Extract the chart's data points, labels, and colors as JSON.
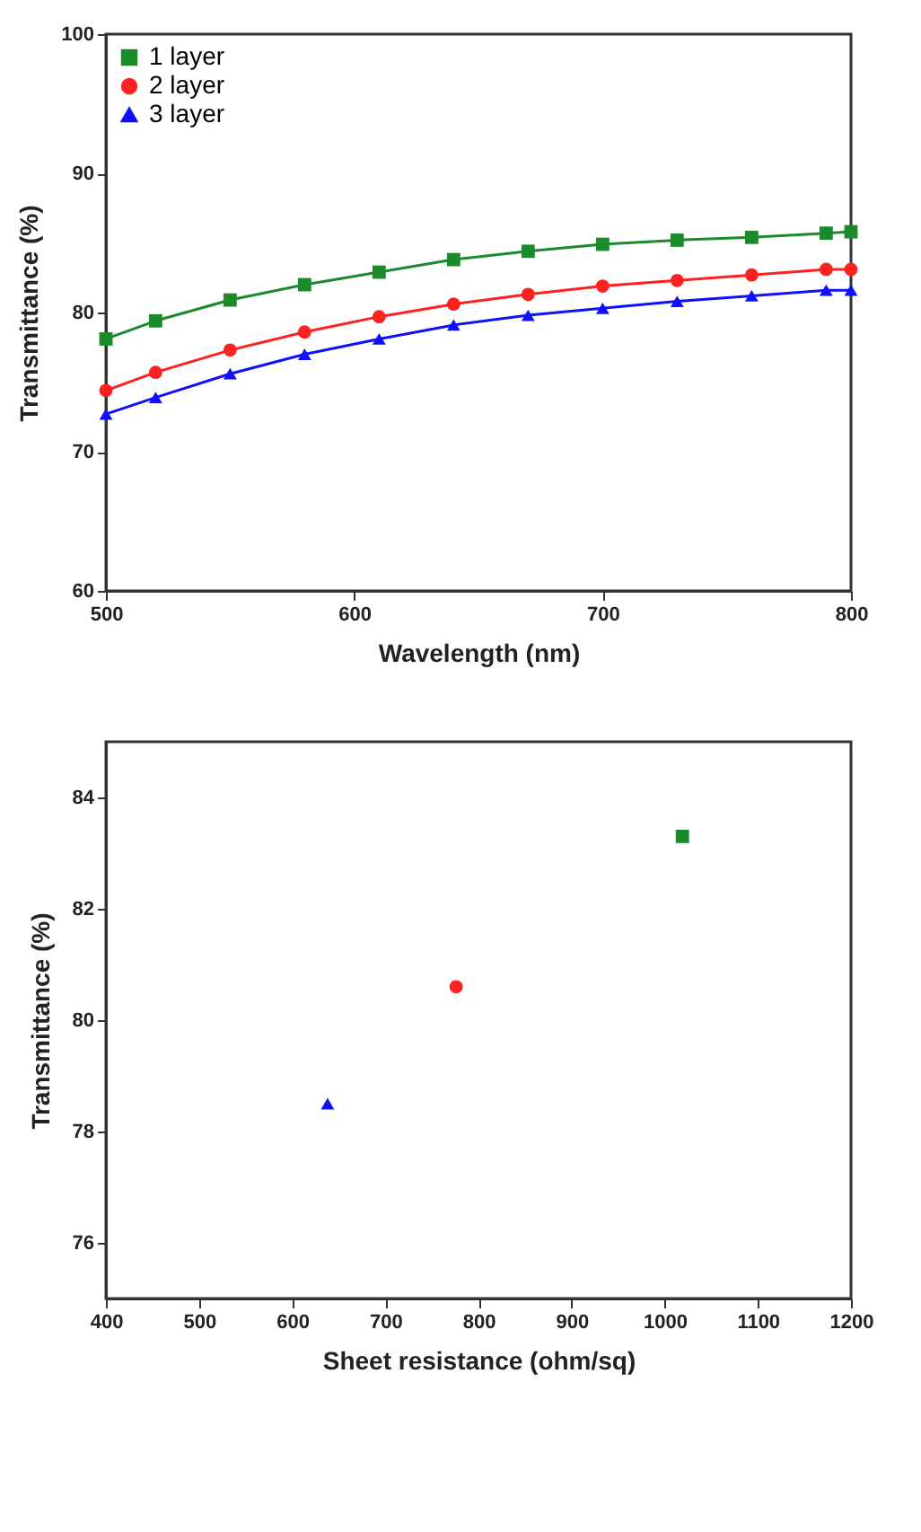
{
  "chart_data": [
    {
      "type": "line",
      "xlabel": "Wavelength (nm)",
      "ylabel": "Transmittance (%)",
      "x": [
        500,
        520,
        550,
        580,
        610,
        640,
        670,
        700,
        730,
        760,
        790,
        800
      ],
      "xlim": [
        500,
        800
      ],
      "xticks": [
        500,
        600,
        700,
        800
      ],
      "ylim": [
        60,
        100
      ],
      "yticks": [
        60,
        70,
        80,
        90,
        100
      ],
      "grid": false,
      "legend": "top left",
      "line_style": "solid",
      "series": [
        {
          "name": "1 layer",
          "color": "#1a8a2a",
          "marker": "square",
          "values": [
            78.1,
            79.4,
            80.9,
            82.0,
            82.9,
            83.8,
            84.4,
            84.9,
            85.2,
            85.4,
            85.7,
            85.8
          ]
        },
        {
          "name": "2 layer",
          "color": "#ff2020",
          "marker": "circle",
          "values": [
            74.4,
            75.7,
            77.3,
            78.6,
            79.7,
            80.6,
            81.3,
            81.9,
            82.3,
            82.7,
            83.1,
            83.1
          ]
        },
        {
          "name": "3 layer",
          "color": "#1010ff",
          "marker": "triangle",
          "values": [
            72.7,
            73.9,
            75.6,
            77.0,
            78.1,
            79.1,
            79.8,
            80.3,
            80.8,
            81.2,
            81.6,
            81.6
          ]
        }
      ]
    },
    {
      "type": "scatter",
      "xlabel": "Sheet resistance (ohm/sq)",
      "ylabel": "Transmittance (%)",
      "xlim": [
        400,
        1200
      ],
      "xticks": [
        400,
        500,
        600,
        700,
        800,
        900,
        1000,
        1100,
        1200
      ],
      "ylim": [
        75,
        85
      ],
      "yticks": [
        76,
        78,
        80,
        82,
        84
      ],
      "grid": false,
      "legend": "top left",
      "series": [
        {
          "name": "1 layer",
          "color": "#1a8a2a",
          "marker": "square",
          "x": [
            1019
          ],
          "values": [
            83.3
          ]
        },
        {
          "name": "2 layer",
          "color": "#ff2020",
          "marker": "circle",
          "x": [
            776
          ],
          "values": [
            80.6
          ]
        },
        {
          "name": "3 layer",
          "color": "#1010ff",
          "marker": "triangle",
          "x": [
            638
          ],
          "values": [
            78.5
          ]
        }
      ]
    }
  ]
}
